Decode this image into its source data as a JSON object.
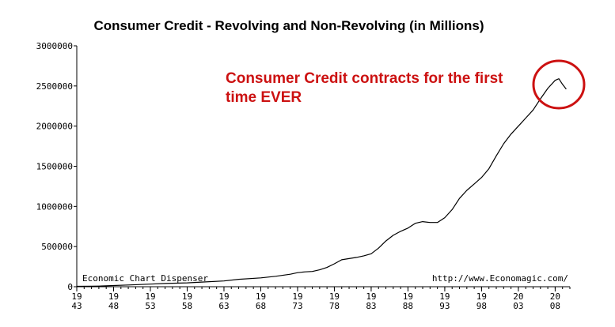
{
  "chart_data": {
    "type": "line",
    "title": "Consumer Credit - Revolving and Non-Revolving (in Millions)",
    "xlabel": "",
    "ylabel": "",
    "xlim": [
      1943,
      2010
    ],
    "ylim": [
      0,
      3000000
    ],
    "grid": false,
    "y_ticks": [
      {
        "value": 0,
        "label": "0"
      },
      {
        "value": 500000,
        "label": "500000"
      },
      {
        "value": 1000000,
        "label": "1000000"
      },
      {
        "value": 1500000,
        "label": "1500000"
      },
      {
        "value": 2000000,
        "label": "2000000"
      },
      {
        "value": 2500000,
        "label": "2500000"
      },
      {
        "value": 3000000,
        "label": "3000000"
      }
    ],
    "x_ticks": [
      {
        "value": 1943,
        "top": "19",
        "bottom": "43"
      },
      {
        "value": 1948,
        "top": "19",
        "bottom": "48"
      },
      {
        "value": 1953,
        "top": "19",
        "bottom": "53"
      },
      {
        "value": 1958,
        "top": "19",
        "bottom": "58"
      },
      {
        "value": 1963,
        "top": "19",
        "bottom": "63"
      },
      {
        "value": 1968,
        "top": "19",
        "bottom": "68"
      },
      {
        "value": 1973,
        "top": "19",
        "bottom": "73"
      },
      {
        "value": 1978,
        "top": "19",
        "bottom": "78"
      },
      {
        "value": 1983,
        "top": "19",
        "bottom": "83"
      },
      {
        "value": 1988,
        "top": "19",
        "bottom": "88"
      },
      {
        "value": 1993,
        "top": "19",
        "bottom": "93"
      },
      {
        "value": 1998,
        "top": "19",
        "bottom": "98"
      },
      {
        "value": 2003,
        "top": "20",
        "bottom": "03"
      },
      {
        "value": 2008,
        "top": "20",
        "bottom": "08"
      }
    ],
    "series": [
      {
        "color": "#000000",
        "x": [
          1943,
          1945,
          1946,
          1948,
          1950,
          1953,
          1955,
          1958,
          1960,
          1963,
          1965,
          1968,
          1970,
          1972,
          1973,
          1974,
          1975,
          1976,
          1977,
          1978,
          1979,
          1980,
          1981,
          1982,
          1983,
          1984,
          1985,
          1986,
          1987,
          1988,
          1989,
          1990,
          1991,
          1992,
          1993,
          1994,
          1995,
          1996,
          1997,
          1998,
          1999,
          2000,
          2001,
          2002,
          2003,
          2004,
          2005,
          2006,
          2007,
          2008,
          2008.5,
          2009,
          2009.5
        ],
        "y": [
          5000,
          6000,
          8000,
          15000,
          22000,
          32000,
          40000,
          48000,
          58000,
          72000,
          92000,
          110000,
          130000,
          155000,
          175000,
          185000,
          190000,
          210000,
          240000,
          285000,
          335000,
          350000,
          365000,
          385000,
          410000,
          480000,
          570000,
          640000,
          690000,
          730000,
          790000,
          810000,
          800000,
          800000,
          860000,
          960000,
          1100000,
          1200000,
          1280000,
          1360000,
          1470000,
          1630000,
          1780000,
          1900000,
          2000000,
          2100000,
          2200000,
          2340000,
          2470000,
          2570000,
          2590000,
          2520000,
          2460000
        ]
      }
    ],
    "annotation": {
      "lines": [
        "Consumer Credit contracts for the first",
        "time EVER"
      ],
      "color": "#cc1111"
    },
    "footer_left": "Economic Chart Dispenser",
    "footer_right": "http://www.Economagic.com/"
  }
}
